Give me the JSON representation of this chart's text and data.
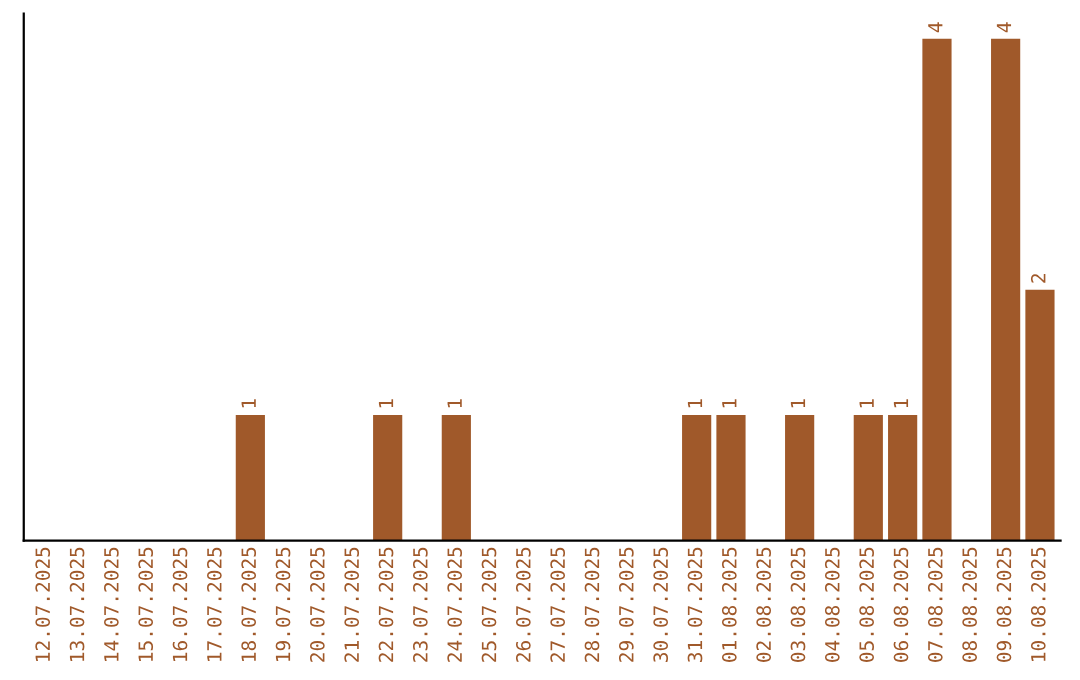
{
  "chart_data": {
    "type": "bar",
    "categories": [
      "12.07.2025",
      "13.07.2025",
      "14.07.2025",
      "15.07.2025",
      "16.07.2025",
      "17.07.2025",
      "18.07.2025",
      "19.07.2025",
      "20.07.2025",
      "21.07.2025",
      "22.07.2025",
      "23.07.2025",
      "24.07.2025",
      "25.07.2025",
      "26.07.2025",
      "27.07.2025",
      "28.07.2025",
      "29.07.2025",
      "30.07.2025",
      "31.07.2025",
      "01.08.2025",
      "02.08.2025",
      "03.08.2025",
      "04.08.2025",
      "05.08.2025",
      "06.08.2025",
      "07.08.2025",
      "08.08.2025",
      "09.08.2025",
      "10.08.2025"
    ],
    "values": [
      0,
      0,
      0,
      0,
      0,
      0,
      1,
      0,
      0,
      0,
      1,
      0,
      1,
      0,
      0,
      0,
      0,
      0,
      0,
      1,
      1,
      0,
      1,
      0,
      1,
      1,
      4,
      0,
      4,
      2
    ],
    "value_labels": [
      null,
      null,
      null,
      null,
      null,
      null,
      "1",
      null,
      null,
      null,
      "1",
      null,
      "1",
      null,
      null,
      null,
      null,
      null,
      null,
      "1",
      "1",
      null,
      "1",
      null,
      "1",
      "1",
      "4",
      null,
      "4",
      "2"
    ],
    "color": "#a0592a",
    "grid": false,
    "legend": false,
    "tick_labels": "x"
  }
}
